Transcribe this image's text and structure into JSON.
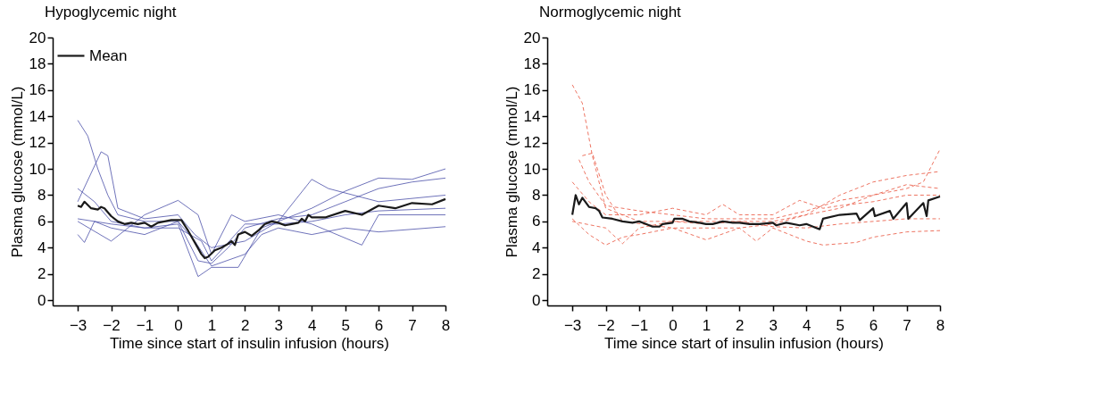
{
  "chart_data": [
    {
      "type": "line",
      "title": "Hypoglycemic night",
      "xlabel": "Time since start of insulin infusion (hours)",
      "ylabel": "Plasma glucose (mmol/L)",
      "xlim": [
        -3.75,
        8
      ],
      "ylim": [
        -0.4,
        20
      ],
      "xticks": [
        {
          "value": -3,
          "label": "−3"
        },
        {
          "value": -2,
          "label": "−2"
        },
        {
          "value": -1,
          "label": "−1"
        },
        0,
        1,
        2,
        3,
        4,
        5,
        6,
        7,
        8
      ],
      "yticks": [
        0,
        2,
        4,
        6,
        8,
        10,
        12,
        14,
        16,
        18,
        20
      ],
      "grid": false,
      "legend": "top left",
      "marker": "none",
      "series": [
        {
          "color": "#4a4fa8",
          "line_style": "solid",
          "x": [
            -3,
            -2.7,
            -2.4,
            -2.1,
            -1.8,
            -1,
            0,
            0.6,
            1,
            1.5,
            2,
            3,
            4,
            5,
            6,
            7,
            8
          ],
          "values": [
            13.7,
            12.5,
            10,
            8,
            6.5,
            6,
            6,
            3,
            2.8,
            4,
            5.5,
            6.2,
            6.5,
            7.5,
            8.5,
            9,
            9.3
          ]
        },
        {
          "color": "#4a4fa8",
          "line_style": "solid",
          "x": [
            -3,
            -2.5,
            -2,
            -1,
            0,
            0.6,
            1,
            1.8,
            2.5,
            3,
            4,
            5,
            6,
            7,
            8
          ],
          "values": [
            8.5,
            7.5,
            6,
            5.5,
            5.8,
            1.8,
            2.5,
            2.5,
            5.5,
            6,
            7,
            8.3,
            9.3,
            9.2,
            10
          ]
        },
        {
          "color": "#4a4fa8",
          "line_style": "solid",
          "x": [
            -3,
            -2.8,
            -2.5,
            -2,
            -1,
            0,
            0.5,
            1,
            2,
            2.5,
            3,
            4,
            5,
            6,
            8
          ],
          "values": [
            5,
            4.4,
            6,
            5.5,
            5,
            6,
            4.5,
            2.6,
            3.5,
            5,
            5.5,
            5,
            5.5,
            5.2,
            5.6
          ]
        },
        {
          "color": "#4a4fa8",
          "line_style": "solid",
          "x": [
            -3,
            -2,
            -1,
            0,
            0.6,
            1,
            1.6,
            2,
            3,
            4,
            5.5,
            6,
            8
          ],
          "values": [
            6,
            4.5,
            6.5,
            7.6,
            6.5,
            3.5,
            6.5,
            6,
            6.5,
            5.8,
            4.2,
            6.5,
            6.5
          ]
        },
        {
          "color": "#4a4fa8",
          "line_style": "solid",
          "x": [
            -3,
            -2.3,
            -2.1,
            -1.8,
            -1,
            0,
            0.5,
            1,
            2,
            3,
            4,
            4.5,
            6,
            8
          ],
          "values": [
            7.5,
            11.3,
            11,
            7,
            6.2,
            6.5,
            5,
            4,
            4.5,
            6,
            9.2,
            8.5,
            7.5,
            8
          ]
        },
        {
          "color": "#4a4fa8",
          "line_style": "solid",
          "x": [
            -3,
            -2,
            -1,
            0,
            0.7,
            1,
            2,
            3,
            4,
            5,
            6,
            8
          ],
          "values": [
            6.2,
            5.8,
            5.5,
            5.5,
            4.5,
            3,
            5.8,
            5.8,
            6,
            6.5,
            6.8,
            7
          ]
        },
        {
          "name": "Mean",
          "color": "#1a1a1a",
          "line_style": "solid",
          "x": [
            -3,
            -2.9,
            -2.8,
            -2.6,
            -2.4,
            -2.3,
            -2.2,
            -2.0,
            -1.8,
            -1.6,
            -1.4,
            -1.2,
            -1.0,
            -0.8,
            -0.6,
            -0.4,
            -0.2,
            0,
            0.1,
            0.3,
            0.5,
            0.7,
            0.8,
            0.9,
            1.1,
            1.3,
            1.5,
            1.6,
            1.7,
            1.8,
            2.0,
            2.2,
            2.4,
            2.6,
            2.8,
            3.0,
            3.2,
            3.4,
            3.6,
            3.7,
            3.8,
            3.9,
            4.0,
            4.4,
            5.0,
            5.5,
            6.0,
            6.5,
            7.0,
            7.6,
            8.0
          ],
          "values": [
            7.2,
            7.1,
            7.5,
            7.0,
            6.9,
            7.1,
            7.0,
            6.4,
            6.0,
            5.8,
            5.9,
            5.8,
            5.9,
            5.6,
            5.9,
            6.0,
            6.1,
            6.1,
            6.1,
            5.3,
            4.4,
            3.5,
            3.2,
            3.3,
            3.8,
            4.0,
            4.3,
            4.5,
            4.2,
            5.0,
            5.2,
            4.9,
            5.3,
            5.8,
            6.0,
            5.9,
            5.7,
            5.8,
            5.9,
            6.2,
            6.0,
            6.5,
            6.3,
            6.3,
            6.8,
            6.5,
            7.2,
            7.0,
            7.4,
            7.3,
            7.7
          ]
        }
      ]
    },
    {
      "type": "line",
      "title": "Normoglycemic night",
      "xlabel": "Time since start of insulin infusion (hours)",
      "ylabel": "Plasma glucose (mmol/L)",
      "xlim": [
        -3.75,
        8
      ],
      "ylim": [
        -0.4,
        20
      ],
      "xticks": [
        {
          "value": -3,
          "label": "−3"
        },
        {
          "value": -2,
          "label": "−2"
        },
        {
          "value": -1,
          "label": "−1"
        },
        0,
        1,
        2,
        3,
        4,
        5,
        6,
        7,
        8
      ],
      "yticks": [
        0,
        2,
        4,
        6,
        8,
        10,
        12,
        14,
        16,
        18,
        20
      ],
      "grid": false,
      "legend": "top left",
      "marker": "none",
      "series": [
        {
          "color": "#e8503a",
          "line_style": "dashed",
          "x": [
            -3,
            -2.7,
            -2.4,
            -2,
            -1,
            0,
            1,
            2,
            3,
            4,
            5,
            6,
            7,
            8
          ],
          "values": [
            16.4,
            15,
            11,
            7,
            6,
            6,
            6,
            6,
            6,
            6.5,
            8,
            9,
            9.5,
            9.8
          ]
        },
        {
          "color": "#e8503a",
          "line_style": "dashed",
          "x": [
            -2.7,
            -2.4,
            -2,
            -1.5,
            0,
            1,
            2,
            3,
            4,
            5,
            6,
            7,
            7.5,
            8
          ],
          "values": [
            11,
            11.2,
            8,
            6,
            5.5,
            5.5,
            5.5,
            5.8,
            6.5,
            7,
            8,
            8.5,
            9,
            11.5
          ]
        },
        {
          "color": "#e8503a",
          "line_style": "dashed",
          "x": [
            -3,
            -2.5,
            -2,
            -1.5,
            -1,
            0,
            1,
            2,
            2.5,
            3,
            4,
            4.5,
            5.5,
            6,
            7,
            8
          ],
          "values": [
            6.2,
            5,
            4.2,
            4.8,
            5,
            5.5,
            4.6,
            5.5,
            4.5,
            5.5,
            4.5,
            4.2,
            4.4,
            4.8,
            5.2,
            5.3
          ]
        },
        {
          "color": "#e8503a",
          "line_style": "dashed",
          "x": [
            -3,
            -2.5,
            -2,
            -1,
            0,
            1,
            1.5,
            2,
            3,
            3.8,
            4.5,
            5,
            6,
            7,
            8
          ],
          "values": [
            9,
            7.5,
            6.5,
            6.5,
            7,
            6.5,
            7.3,
            6.5,
            6.5,
            7.6,
            7,
            7.2,
            7.5,
            8,
            8
          ]
        },
        {
          "color": "#e8503a",
          "line_style": "dashed",
          "x": [
            -3,
            -2,
            -1.5,
            -1,
            0,
            1,
            2,
            3,
            4,
            5,
            6,
            7,
            8
          ],
          "values": [
            6,
            5.5,
            4.3,
            5.5,
            6,
            5.8,
            6,
            5.6,
            5.5,
            5.8,
            6,
            6.2,
            6.2
          ]
        },
        {
          "color": "#e8503a",
          "line_style": "dashed",
          "x": [
            -2.8,
            -2.5,
            -2,
            -1,
            0,
            1,
            2,
            3,
            4,
            5,
            6,
            7,
            8
          ],
          "values": [
            10.7,
            9,
            7.2,
            6.8,
            6.5,
            6.2,
            6.2,
            6.2,
            6.8,
            7.6,
            8,
            8.8,
            8.5
          ]
        },
        {
          "name": "Mean",
          "color": "#1a1a1a",
          "line_style": "solid",
          "x": [
            -3,
            -2.9,
            -2.8,
            -2.7,
            -2.5,
            -2.3,
            -2.2,
            -2.1,
            -1.8,
            -1.5,
            -1.2,
            -1.0,
            -0.8,
            -0.6,
            -0.4,
            -0.3,
            0,
            0.05,
            0.3,
            0.5,
            0.8,
            1.0,
            1.2,
            1.5,
            1.8,
            2.0,
            2.3,
            2.6,
            3.0,
            3.1,
            3.4,
            3.8,
            4.0,
            4.4,
            4.5,
            5.0,
            5.5,
            5.6,
            6.0,
            6.05,
            6.5,
            6.6,
            7.0,
            7.05,
            7.5,
            7.6,
            7.65,
            8.0
          ],
          "values": [
            6.5,
            8.0,
            7.3,
            7.8,
            7.1,
            7.0,
            6.8,
            6.3,
            6.2,
            6.0,
            5.9,
            6.0,
            5.8,
            5.6,
            5.6,
            5.8,
            5.9,
            6.2,
            6.2,
            6.0,
            5.9,
            5.8,
            5.8,
            6.0,
            5.9,
            5.9,
            5.8,
            5.8,
            5.9,
            5.7,
            5.9,
            5.7,
            5.8,
            5.4,
            6.2,
            6.5,
            6.6,
            6.1,
            7.0,
            6.4,
            6.8,
            6.2,
            7.4,
            6.2,
            7.4,
            6.4,
            7.6,
            7.9
          ]
        }
      ]
    }
  ]
}
